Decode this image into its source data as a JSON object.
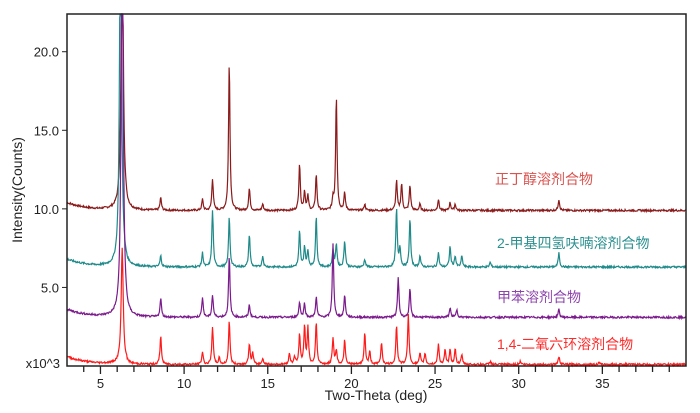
{
  "chart_data": {
    "type": "line",
    "title": "",
    "xlabel": "Two-Theta (deg)",
    "ylabel": "Intensity(Counts)",
    "y_multiplier_label": "x10^3",
    "xlim": [
      3,
      40
    ],
    "ylim": [
      0,
      22.4
    ],
    "xticks": [
      5,
      10,
      15,
      20,
      25,
      30,
      35
    ],
    "yticks": [
      5.0,
      10.0,
      15.0,
      20.0
    ],
    "grid": false,
    "series": [
      {
        "name": "正丁醇溶剂合物",
        "color": "#8b1a1a",
        "label_color": "#d9534f",
        "baseline": 9.9,
        "peaks": [
          [
            6.3,
            30
          ],
          [
            8.6,
            10.7
          ],
          [
            11.1,
            10.6
          ],
          [
            11.7,
            11.9
          ],
          [
            12.7,
            19.4
          ],
          [
            13.9,
            11.3
          ],
          [
            14.7,
            10.3
          ],
          [
            16.9,
            12.9
          ],
          [
            17.2,
            11.1
          ],
          [
            17.4,
            10.8
          ],
          [
            17.9,
            12.2
          ],
          [
            18.9,
            10.6
          ],
          [
            19.1,
            17.2
          ],
          [
            19.6,
            11.0
          ],
          [
            20.8,
            10.3
          ],
          [
            22.7,
            11.8
          ],
          [
            23.0,
            11.6
          ],
          [
            23.5,
            11.5
          ],
          [
            24.1,
            10.3
          ],
          [
            25.2,
            10.6
          ],
          [
            25.9,
            10.4
          ],
          [
            26.2,
            10.3
          ],
          [
            32.4,
            10.6
          ]
        ]
      },
      {
        "name": "2-甲基四氢呋喃溶剂合物",
        "color": "#1f8a8a",
        "label_color": "#2a8f8f",
        "baseline": 6.3,
        "peaks": [
          [
            6.2,
            30
          ],
          [
            8.6,
            7.0
          ],
          [
            11.1,
            7.2
          ],
          [
            11.7,
            9.9
          ],
          [
            12.7,
            9.5
          ],
          [
            13.9,
            8.4
          ],
          [
            14.7,
            7.0
          ],
          [
            16.9,
            8.6
          ],
          [
            17.2,
            7.6
          ],
          [
            17.4,
            7.3
          ],
          [
            17.9,
            9.5
          ],
          [
            18.9,
            7.4
          ],
          [
            19.1,
            7.8
          ],
          [
            19.6,
            8.0
          ],
          [
            20.8,
            6.8
          ],
          [
            22.7,
            10.0
          ],
          [
            22.9,
            7.5
          ],
          [
            23.5,
            9.4
          ],
          [
            24.1,
            7.0
          ],
          [
            25.2,
            7.2
          ],
          [
            25.9,
            7.6
          ],
          [
            26.2,
            7.0
          ],
          [
            26.6,
            7.0
          ],
          [
            28.3,
            6.6
          ],
          [
            32.4,
            7.2
          ]
        ]
      },
      {
        "name": "甲苯溶剂合物",
        "color": "#7b1a8c",
        "label_color": "#8e44ad",
        "baseline": 3.1,
        "peaks": [
          [
            6.3,
            30
          ],
          [
            8.6,
            4.3
          ],
          [
            11.1,
            4.4
          ],
          [
            11.7,
            4.5
          ],
          [
            12.7,
            7.0
          ],
          [
            13.9,
            3.9
          ],
          [
            16.9,
            4.1
          ],
          [
            17.2,
            4.0
          ],
          [
            17.9,
            4.4
          ],
          [
            18.9,
            7.8
          ],
          [
            19.6,
            4.5
          ],
          [
            22.8,
            5.6
          ],
          [
            23.5,
            4.9
          ],
          [
            25.9,
            3.7
          ],
          [
            26.3,
            3.6
          ],
          [
            32.4,
            3.6
          ]
        ]
      },
      {
        "name": "1,4-二氧六环溶剂合物",
        "color": "#ff1a1a",
        "label_color": "#ff2a2a",
        "baseline": 0.1,
        "peaks": [
          [
            6.3,
            7.4
          ],
          [
            8.6,
            1.9
          ],
          [
            11.1,
            0.9
          ],
          [
            11.7,
            2.5
          ],
          [
            12.1,
            0.5
          ],
          [
            12.7,
            2.9
          ],
          [
            13.9,
            1.4
          ],
          [
            14.1,
            0.8
          ],
          [
            14.7,
            0.5
          ],
          [
            16.3,
            0.8
          ],
          [
            16.6,
            0.6
          ],
          [
            16.9,
            2.0
          ],
          [
            17.2,
            2.5
          ],
          [
            17.4,
            2.4
          ],
          [
            17.9,
            2.8
          ],
          [
            18.9,
            1.8
          ],
          [
            19.1,
            1.0
          ],
          [
            19.6,
            1.7
          ],
          [
            20.8,
            2.1
          ],
          [
            21.1,
            0.9
          ],
          [
            21.8,
            1.5
          ],
          [
            22.7,
            2.6
          ],
          [
            23.4,
            3.3
          ],
          [
            24.1,
            0.8
          ],
          [
            24.4,
            0.8
          ],
          [
            25.2,
            1.4
          ],
          [
            25.6,
            1.0
          ],
          [
            25.9,
            1.0
          ],
          [
            26.2,
            1.1
          ],
          [
            26.6,
            0.7
          ],
          [
            28.3,
            0.3
          ],
          [
            30.1,
            0.3
          ],
          [
            32.4,
            0.6
          ],
          [
            34.8,
            0.2
          ]
        ]
      }
    ]
  }
}
